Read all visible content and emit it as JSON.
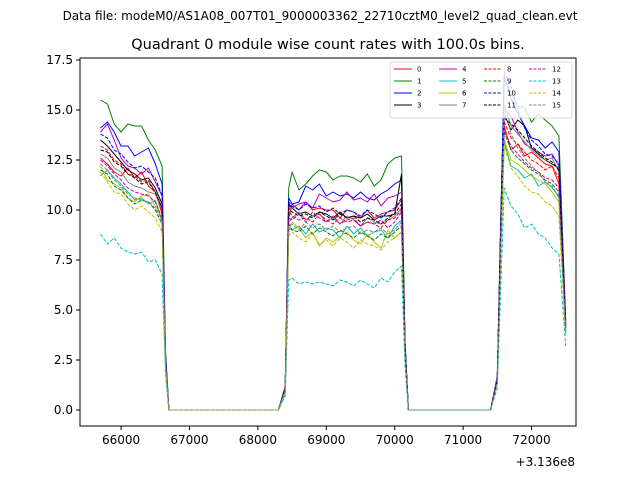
{
  "chart_data": {
    "type": "line",
    "suptitle": "Data file: modeM0/AS1A08_007T01_9000003362_22710cztM0_level2_quad_clean.evt",
    "title": "Quadrant 0 module wise count rates with 100.0s bins.",
    "xlabel": "",
    "ylabel": "",
    "x_offset_label": "+3.136e8",
    "xlim": [
      65400,
      72650
    ],
    "ylim": [
      -0.8,
      17.6
    ],
    "xticks": [
      66000,
      67000,
      68000,
      69000,
      70000,
      71000,
      72000
    ],
    "xtick_labels": [
      "66000",
      "67000",
      "68000",
      "69000",
      "70000",
      "71000",
      "72000"
    ],
    "yticks": [
      0.0,
      2.5,
      5.0,
      7.5,
      10.0,
      12.5,
      15.0,
      17.5
    ],
    "ytick_labels": [
      "0.0",
      "2.5",
      "5.0",
      "7.5",
      "10.0",
      "12.5",
      "15.0",
      "17.5"
    ],
    "legend_location": "upper right",
    "x": [
      65700,
      65800,
      65900,
      66000,
      66100,
      66200,
      66300,
      66400,
      66500,
      66600,
      66650,
      66700,
      66800,
      67000,
      67500,
      68000,
      68300,
      68400,
      68450,
      68500,
      68600,
      68700,
      68800,
      68900,
      69000,
      69100,
      69200,
      69300,
      69400,
      69500,
      69600,
      69700,
      69800,
      69900,
      70000,
      70100,
      70150,
      70200,
      70300,
      70500,
      71000,
      71400,
      71500,
      71550,
      71600,
      71700,
      71800,
      71900,
      72000,
      72100,
      72200,
      72300,
      72400,
      72500
    ],
    "series": [
      {
        "name": "0",
        "values": [
          12.6,
          12.3,
          11.9,
          11.7,
          12.1,
          11.6,
          11.9,
          11.2,
          10.9,
          9.8,
          2.5,
          0,
          0,
          0,
          0,
          0,
          0,
          1.0,
          9.6,
          10.3,
          10.0,
          10.4,
          10.0,
          10.1,
          10.0,
          10.0,
          9.6,
          10.0,
          9.9,
          9.6,
          10.0,
          9.6,
          9.8,
          9.9,
          10.0,
          10.5,
          3.0,
          0,
          0,
          0,
          0,
          0,
          1.5,
          8.8,
          14.2,
          13.0,
          13.3,
          12.7,
          12.9,
          12.6,
          12.3,
          12.2,
          11.3,
          4.2
        ],
        "color": "#ff0000",
        "dash": "solid"
      },
      {
        "name": "1",
        "values": [
          15.5,
          15.3,
          14.3,
          13.9,
          14.3,
          14.2,
          14.2,
          13.5,
          13.0,
          12.2,
          3.0,
          0,
          0,
          0,
          0,
          0,
          0,
          1.2,
          11.1,
          11.9,
          11.0,
          11.3,
          11.7,
          12.0,
          11.9,
          11.5,
          11.7,
          11.7,
          11.6,
          11.4,
          11.8,
          11.2,
          11.5,
          12.3,
          12.6,
          12.7,
          3.5,
          0,
          0,
          0,
          0,
          0,
          1.7,
          9.5,
          16.6,
          15.8,
          15.2,
          15.1,
          14.4,
          14.8,
          14.5,
          14.2,
          13.7,
          4.5
        ],
        "color": "#008000",
        "dash": "solid"
      },
      {
        "name": "2",
        "values": [
          14.1,
          14.4,
          13.9,
          13.2,
          13.2,
          12.7,
          12.9,
          13.1,
          12.3,
          11.3,
          2.8,
          0,
          0,
          0,
          0,
          0,
          0,
          1.1,
          10.6,
          10.3,
          10.4,
          11.2,
          11.0,
          11.3,
          10.7,
          10.9,
          10.7,
          10.8,
          10.6,
          10.9,
          10.6,
          10.5,
          10.8,
          11.0,
          11.3,
          11.5,
          3.2,
          0,
          0,
          0,
          0,
          0,
          1.6,
          9.2,
          16.7,
          15.6,
          14.8,
          14.2,
          13.6,
          13.5,
          13.1,
          13.4,
          12.9,
          4.4
        ],
        "color": "#0000ff",
        "dash": "solid"
      },
      {
        "name": "3",
        "values": [
          13.5,
          13.2,
          12.8,
          12.4,
          12.0,
          11.8,
          11.5,
          11.6,
          11.1,
          10.3,
          2.6,
          0,
          0,
          0,
          0,
          0,
          0,
          1.0,
          10.3,
          10.1,
          9.8,
          9.9,
          9.7,
          9.9,
          9.8,
          9.6,
          9.9,
          9.6,
          9.7,
          9.6,
          9.8,
          9.5,
          9.7,
          9.7,
          9.8,
          11.8,
          3.4,
          0,
          0,
          0,
          0,
          0,
          1.5,
          9.0,
          14.8,
          14.0,
          14.5,
          14.2,
          13.1,
          12.8,
          12.5,
          12.3,
          12.1,
          4.1
        ],
        "color": "#000000",
        "dash": "solid"
      },
      {
        "name": "4",
        "values": [
          13.9,
          14.3,
          13.5,
          12.6,
          12.2,
          12.1,
          11.8,
          12.1,
          11.4,
          10.7,
          2.7,
          0,
          0,
          0,
          0,
          0,
          0,
          1.1,
          10.2,
          10.1,
          10.3,
          10.4,
          10.1,
          10.8,
          10.6,
          10.4,
          10.5,
          10.9,
          10.5,
          10.6,
          10.4,
          10.8,
          10.2,
          10.6,
          10.7,
          10.9,
          3.3,
          0,
          0,
          0,
          0,
          0,
          1.6,
          8.9,
          15.1,
          14.7,
          13.9,
          13.3,
          13.1,
          12.9,
          12.7,
          12.8,
          12.2,
          4.3
        ],
        "color": "#bf00bf",
        "dash": "solid"
      },
      {
        "name": "5",
        "values": [
          11.7,
          12.0,
          11.6,
          11.3,
          10.9,
          10.5,
          10.6,
          10.3,
          10.5,
          9.4,
          2.3,
          0,
          0,
          0,
          0,
          0,
          0,
          1.0,
          9.1,
          9.0,
          9.2,
          8.8,
          9.3,
          8.9,
          9.1,
          9.0,
          8.6,
          9.2,
          8.8,
          9.1,
          8.7,
          8.9,
          9.0,
          8.6,
          9.2,
          9.5,
          3.0,
          0,
          0,
          0,
          0,
          0,
          1.4,
          8.0,
          13.4,
          12.2,
          12.0,
          11.6,
          11.8,
          11.2,
          11.4,
          11.1,
          10.7,
          3.9
        ],
        "color": "#00bfbf",
        "dash": "solid"
      },
      {
        "name": "6",
        "values": [
          12.2,
          11.5,
          11.3,
          11.1,
          10.6,
          10.4,
          10.7,
          10.8,
          10.2,
          9.6,
          2.3,
          0,
          0,
          0,
          0,
          0,
          0,
          0.9,
          8.9,
          9.4,
          9.1,
          8.6,
          8.9,
          8.2,
          8.6,
          8.4,
          8.7,
          8.9,
          8.5,
          8.3,
          8.8,
          8.4,
          8.1,
          9.0,
          8.6,
          8.9,
          2.8,
          0,
          0,
          0,
          0,
          0,
          1.4,
          7.9,
          13.5,
          12.5,
          12.3,
          12.0,
          11.7,
          11.5,
          11.3,
          10.9,
          10.4,
          3.8
        ],
        "color": "#bfbf00",
        "dash": "solid"
      },
      {
        "name": "7",
        "values": [
          12.8,
          12.6,
          12.1,
          11.9,
          11.4,
          11.2,
          11.1,
          10.9,
          10.8,
          10.0,
          2.5,
          0,
          0,
          0,
          0,
          0,
          0,
          1.0,
          9.4,
          9.6,
          9.9,
          9.5,
          9.7,
          9.8,
          9.4,
          9.6,
          9.3,
          9.7,
          9.5,
          9.2,
          9.6,
          9.4,
          9.3,
          9.5,
          9.7,
          10.1,
          3.1,
          0,
          0,
          0,
          0,
          0,
          1.5,
          8.6,
          15.3,
          14.2,
          13.8,
          13.4,
          13.0,
          12.7,
          12.5,
          12.6,
          11.9,
          4.0
        ],
        "color": "#808080",
        "dash": "solid"
      },
      {
        "name": "8",
        "values": [
          13.2,
          13.0,
          12.5,
          12.3,
          11.8,
          11.7,
          11.4,
          11.5,
          10.9,
          10.1,
          2.6,
          0,
          0,
          0,
          0,
          0,
          0,
          1.0,
          10.0,
          9.7,
          9.5,
          9.6,
          9.4,
          9.8,
          9.5,
          9.3,
          9.6,
          9.4,
          9.5,
          9.2,
          9.4,
          9.3,
          9.1,
          9.5,
          9.6,
          10.0,
          3.1,
          0,
          0,
          0,
          0,
          0,
          1.5,
          8.7,
          14.4,
          13.6,
          13.3,
          12.9,
          12.5,
          12.3,
          12.0,
          12.2,
          11.6,
          4.1
        ],
        "color": "#ff0000",
        "dash": "dashed"
      },
      {
        "name": "9",
        "values": [
          12.0,
          11.8,
          11.2,
          11.0,
          10.6,
          10.3,
          10.5,
          10.4,
          10.0,
          9.3,
          2.4,
          0,
          0,
          0,
          0,
          0,
          0,
          0.9,
          9.3,
          9.0,
          8.9,
          9.2,
          8.8,
          9.1,
          8.9,
          8.7,
          9.0,
          8.8,
          8.6,
          8.9,
          8.7,
          8.5,
          8.8,
          8.6,
          8.9,
          9.2,
          2.9,
          0,
          0,
          0,
          0,
          0,
          1.4,
          8.2,
          13.9,
          13.0,
          12.6,
          12.3,
          12.0,
          11.8,
          11.5,
          11.3,
          10.9,
          3.9
        ],
        "color": "#008000",
        "dash": "dashed"
      },
      {
        "name": "10",
        "values": [
          13.8,
          13.6,
          13.0,
          12.8,
          12.4,
          12.1,
          12.2,
          11.9,
          11.6,
          10.7,
          2.7,
          0,
          0,
          0,
          0,
          0,
          0,
          1.1,
          10.4,
          10.2,
          10.0,
          10.3,
          10.1,
          10.2,
          9.9,
          10.1,
          9.8,
          10.0,
          9.9,
          9.7,
          10.0,
          9.8,
          9.6,
          9.9,
          10.1,
          10.6,
          3.3,
          0,
          0,
          0,
          0,
          0,
          1.6,
          9.1,
          16.9,
          16.2,
          15.0,
          14.1,
          13.5,
          13.2,
          12.8,
          12.7,
          12.3,
          4.3
        ],
        "color": "#0000ff",
        "dash": "dashed"
      },
      {
        "name": "11",
        "values": [
          13.0,
          12.9,
          12.4,
          12.2,
          11.8,
          11.6,
          11.3,
          11.4,
          10.9,
          10.1,
          2.6,
          0,
          0,
          0,
          0,
          0,
          0,
          1.0,
          10.1,
          9.9,
          9.7,
          9.8,
          9.6,
          9.9,
          9.7,
          9.5,
          9.8,
          9.6,
          9.7,
          9.4,
          9.6,
          9.5,
          9.3,
          9.6,
          9.8,
          10.3,
          3.2,
          0,
          0,
          0,
          0,
          0,
          1.5,
          8.9,
          14.6,
          14.3,
          14.0,
          13.6,
          13.2,
          12.9,
          12.6,
          12.4,
          12.0,
          4.2
        ],
        "color": "#000000",
        "dash": "dashed"
      },
      {
        "name": "12",
        "values": [
          12.5,
          12.2,
          11.8,
          11.5,
          11.1,
          10.9,
          10.8,
          10.7,
          10.4,
          9.6,
          2.5,
          0,
          0,
          0,
          0,
          0,
          0,
          1.0,
          9.6,
          9.5,
          9.8,
          9.4,
          9.9,
          9.6,
          9.4,
          9.7,
          9.3,
          9.5,
          9.6,
          9.2,
          9.4,
          9.3,
          9.5,
          9.1,
          9.4,
          9.9,
          3.0,
          0,
          0,
          0,
          0,
          0,
          1.5,
          8.5,
          14.0,
          13.2,
          12.8,
          12.4,
          12.1,
          11.9,
          11.6,
          11.5,
          11.1,
          4.0
        ],
        "color": "#bf00bf",
        "dash": "dashed"
      },
      {
        "name": "13",
        "values": [
          8.8,
          8.3,
          8.6,
          8.1,
          7.9,
          7.8,
          7.9,
          7.4,
          7.5,
          6.8,
          1.8,
          0,
          0,
          0,
          0,
          0,
          0,
          0.7,
          6.5,
          6.6,
          6.3,
          6.4,
          6.3,
          6.4,
          6.3,
          6.2,
          6.5,
          6.4,
          6.2,
          6.5,
          6.3,
          6.1,
          6.6,
          6.4,
          6.9,
          7.2,
          2.2,
          0,
          0,
          0,
          0,
          0,
          1.1,
          6.0,
          11.1,
          10.2,
          9.8,
          9.1,
          9.3,
          8.8,
          8.6,
          8.1,
          7.8,
          3.2
        ],
        "color": "#00bfbf",
        "dash": "dashed"
      },
      {
        "name": "14",
        "values": [
          11.9,
          11.4,
          10.9,
          10.8,
          10.3,
          10.0,
          10.2,
          9.9,
          9.6,
          8.9,
          2.2,
          0,
          0,
          0,
          0,
          0,
          0,
          0.9,
          8.7,
          8.9,
          8.6,
          8.4,
          8.8,
          8.3,
          8.5,
          8.2,
          8.6,
          8.4,
          8.1,
          8.5,
          8.3,
          8.2,
          8.0,
          8.4,
          8.6,
          8.9,
          2.8,
          0,
          0,
          0,
          0,
          0,
          1.3,
          7.6,
          13.2,
          12.1,
          11.7,
          11.2,
          10.9,
          10.8,
          10.4,
          10.2,
          9.7,
          3.7
        ],
        "color": "#bfbf00",
        "dash": "dashed"
      },
      {
        "name": "15",
        "values": [
          12.3,
          12.0,
          11.5,
          11.2,
          10.8,
          10.6,
          10.5,
          10.4,
          10.1,
          9.5,
          2.4,
          0,
          0,
          0,
          0,
          0,
          0,
          0.9,
          9.2,
          9.3,
          9.0,
          9.4,
          9.1,
          9.3,
          9.0,
          9.2,
          8.9,
          9.1,
          9.2,
          8.8,
          9.0,
          8.9,
          9.1,
          8.8,
          9.0,
          9.4,
          2.9,
          0,
          0,
          0,
          0,
          0,
          1.4,
          8.1,
          15.2,
          13.8,
          13.1,
          12.6,
          12.2,
          11.9,
          11.4,
          11.2,
          10.6,
          3.9
        ],
        "color": "#808080",
        "dash": "dashed"
      }
    ]
  }
}
